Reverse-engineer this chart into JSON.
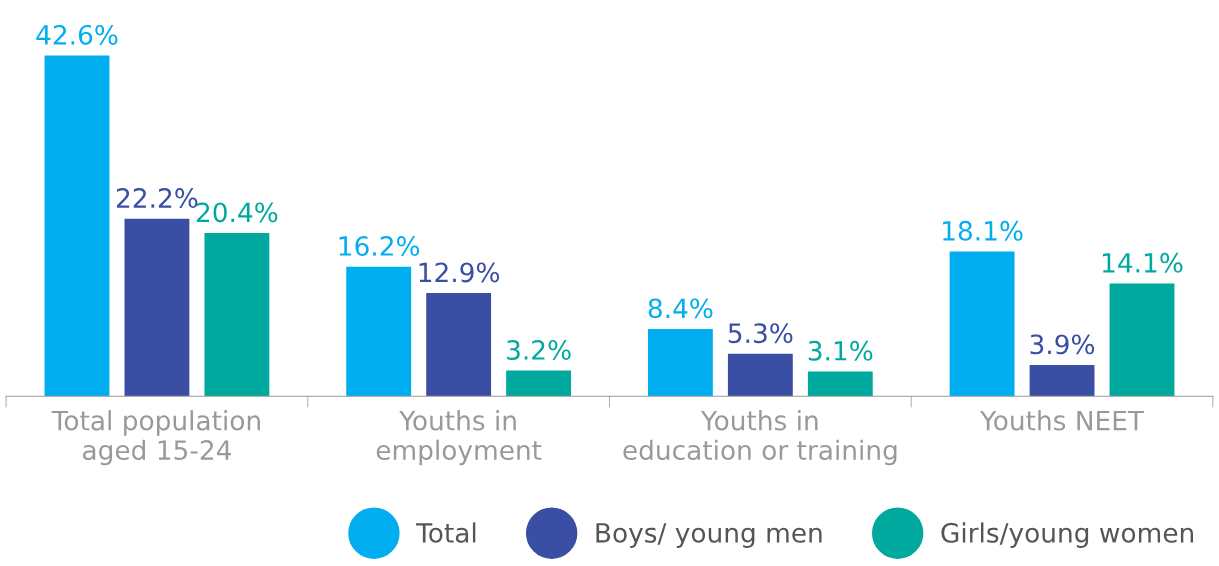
{
  "chart_data": {
    "type": "bar",
    "categories": [
      "Total population\naged 15-24",
      "Youths in\nemployment",
      "Youths in\neducation or training",
      "Youths NEET"
    ],
    "series": [
      {
        "name": "Total",
        "color": "#00aeef",
        "values": [
          42.6,
          16.2,
          8.4,
          18.1
        ],
        "value_labels": [
          "42.6%",
          "16.2%",
          "8.4%",
          "18.1%"
        ]
      },
      {
        "name": "Boys/ young men",
        "color": "#3a4ea3",
        "values": [
          22.2,
          12.9,
          5.3,
          3.9
        ],
        "value_labels": [
          "22.2%",
          "12.9%",
          "5.3%",
          "3.9%"
        ]
      },
      {
        "name": "Girls/young women",
        "color": "#00a99d",
        "values": [
          20.4,
          3.2,
          3.1,
          14.1
        ],
        "value_labels": [
          "20.4%",
          "3.2%",
          "3.1%",
          "14.1%"
        ]
      }
    ],
    "legend": "bottom right",
    "grid": false
  }
}
